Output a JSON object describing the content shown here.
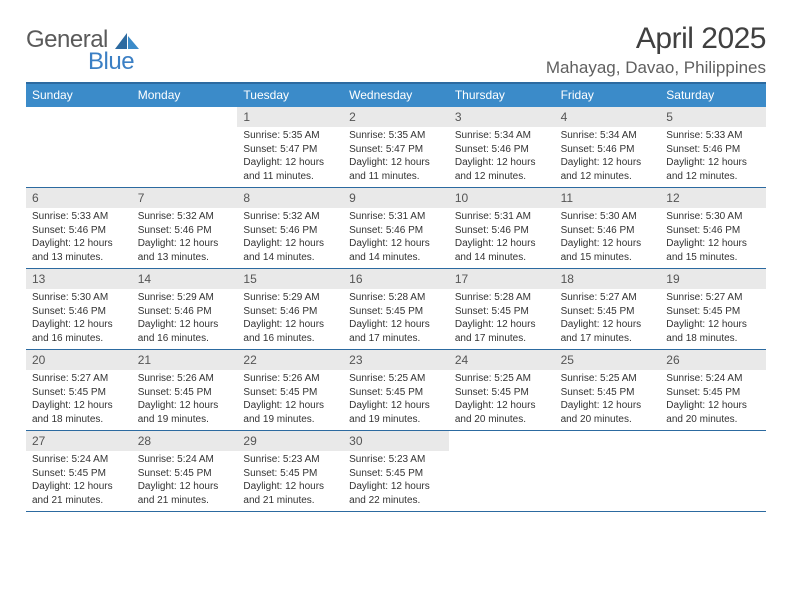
{
  "brand": {
    "part1": "General",
    "part2": "Blue"
  },
  "title": "April 2025",
  "location": "Mahayag, Davao, Philippines",
  "colors": {
    "header_bar": "#3b8bc9",
    "border": "#2c6aa0",
    "daynum_bg": "#e9e9e9",
    "text": "#333333",
    "brand_gray": "#5a5a5a",
    "brand_blue": "#3b7fc4",
    "background": "#ffffff"
  },
  "typography": {
    "title_fontsize": 30,
    "location_fontsize": 17,
    "weekday_fontsize": 12,
    "daynum_fontsize": 12,
    "body_fontsize": 10
  },
  "weekdays": [
    "Sunday",
    "Monday",
    "Tuesday",
    "Wednesday",
    "Thursday",
    "Friday",
    "Saturday"
  ],
  "grid": {
    "columns": 7,
    "rows": 5,
    "first_weekday_index": 2
  },
  "days": [
    {
      "n": 1,
      "sunrise": "5:35 AM",
      "sunset": "5:47 PM",
      "daylight": "12 hours and 11 minutes."
    },
    {
      "n": 2,
      "sunrise": "5:35 AM",
      "sunset": "5:47 PM",
      "daylight": "12 hours and 11 minutes."
    },
    {
      "n": 3,
      "sunrise": "5:34 AM",
      "sunset": "5:46 PM",
      "daylight": "12 hours and 12 minutes."
    },
    {
      "n": 4,
      "sunrise": "5:34 AM",
      "sunset": "5:46 PM",
      "daylight": "12 hours and 12 minutes."
    },
    {
      "n": 5,
      "sunrise": "5:33 AM",
      "sunset": "5:46 PM",
      "daylight": "12 hours and 12 minutes."
    },
    {
      "n": 6,
      "sunrise": "5:33 AM",
      "sunset": "5:46 PM",
      "daylight": "12 hours and 13 minutes."
    },
    {
      "n": 7,
      "sunrise": "5:32 AM",
      "sunset": "5:46 PM",
      "daylight": "12 hours and 13 minutes."
    },
    {
      "n": 8,
      "sunrise": "5:32 AM",
      "sunset": "5:46 PM",
      "daylight": "12 hours and 14 minutes."
    },
    {
      "n": 9,
      "sunrise": "5:31 AM",
      "sunset": "5:46 PM",
      "daylight": "12 hours and 14 minutes."
    },
    {
      "n": 10,
      "sunrise": "5:31 AM",
      "sunset": "5:46 PM",
      "daylight": "12 hours and 14 minutes."
    },
    {
      "n": 11,
      "sunrise": "5:30 AM",
      "sunset": "5:46 PM",
      "daylight": "12 hours and 15 minutes."
    },
    {
      "n": 12,
      "sunrise": "5:30 AM",
      "sunset": "5:46 PM",
      "daylight": "12 hours and 15 minutes."
    },
    {
      "n": 13,
      "sunrise": "5:30 AM",
      "sunset": "5:46 PM",
      "daylight": "12 hours and 16 minutes."
    },
    {
      "n": 14,
      "sunrise": "5:29 AM",
      "sunset": "5:46 PM",
      "daylight": "12 hours and 16 minutes."
    },
    {
      "n": 15,
      "sunrise": "5:29 AM",
      "sunset": "5:46 PM",
      "daylight": "12 hours and 16 minutes."
    },
    {
      "n": 16,
      "sunrise": "5:28 AM",
      "sunset": "5:45 PM",
      "daylight": "12 hours and 17 minutes."
    },
    {
      "n": 17,
      "sunrise": "5:28 AM",
      "sunset": "5:45 PM",
      "daylight": "12 hours and 17 minutes."
    },
    {
      "n": 18,
      "sunrise": "5:27 AM",
      "sunset": "5:45 PM",
      "daylight": "12 hours and 17 minutes."
    },
    {
      "n": 19,
      "sunrise": "5:27 AM",
      "sunset": "5:45 PM",
      "daylight": "12 hours and 18 minutes."
    },
    {
      "n": 20,
      "sunrise": "5:27 AM",
      "sunset": "5:45 PM",
      "daylight": "12 hours and 18 minutes."
    },
    {
      "n": 21,
      "sunrise": "5:26 AM",
      "sunset": "5:45 PM",
      "daylight": "12 hours and 19 minutes."
    },
    {
      "n": 22,
      "sunrise": "5:26 AM",
      "sunset": "5:45 PM",
      "daylight": "12 hours and 19 minutes."
    },
    {
      "n": 23,
      "sunrise": "5:25 AM",
      "sunset": "5:45 PM",
      "daylight": "12 hours and 19 minutes."
    },
    {
      "n": 24,
      "sunrise": "5:25 AM",
      "sunset": "5:45 PM",
      "daylight": "12 hours and 20 minutes."
    },
    {
      "n": 25,
      "sunrise": "5:25 AM",
      "sunset": "5:45 PM",
      "daylight": "12 hours and 20 minutes."
    },
    {
      "n": 26,
      "sunrise": "5:24 AM",
      "sunset": "5:45 PM",
      "daylight": "12 hours and 20 minutes."
    },
    {
      "n": 27,
      "sunrise": "5:24 AM",
      "sunset": "5:45 PM",
      "daylight": "12 hours and 21 minutes."
    },
    {
      "n": 28,
      "sunrise": "5:24 AM",
      "sunset": "5:45 PM",
      "daylight": "12 hours and 21 minutes."
    },
    {
      "n": 29,
      "sunrise": "5:23 AM",
      "sunset": "5:45 PM",
      "daylight": "12 hours and 21 minutes."
    },
    {
      "n": 30,
      "sunrise": "5:23 AM",
      "sunset": "5:45 PM",
      "daylight": "12 hours and 22 minutes."
    }
  ],
  "labels": {
    "sunrise": "Sunrise:",
    "sunset": "Sunset:",
    "daylight": "Daylight:"
  }
}
